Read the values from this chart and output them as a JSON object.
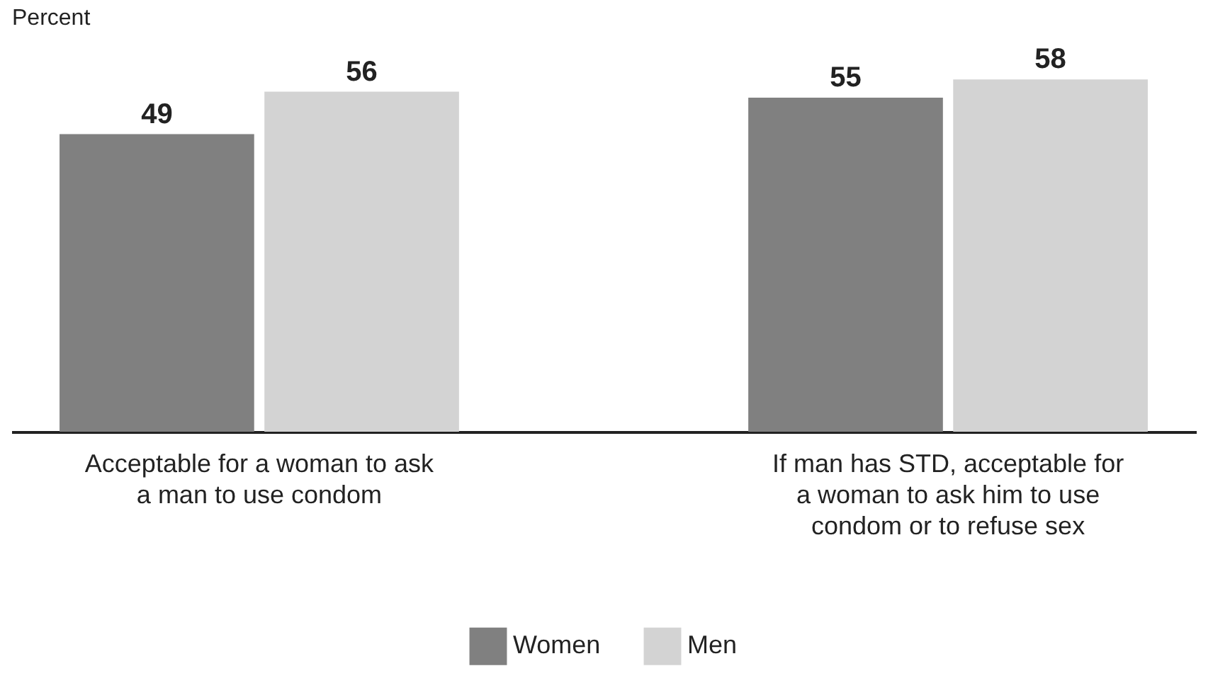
{
  "chart_data": {
    "type": "bar",
    "ylabel": "Percent",
    "categories": [
      "Acceptable for a woman to ask a man to use condom",
      "If man has STD, acceptable for a woman to ask him to use condom or to refuse sex"
    ],
    "series": [
      {
        "name": "Women",
        "color": "#808080",
        "values": [
          49,
          55
        ]
      },
      {
        "name": "Men",
        "color": "#d3d3d3",
        "values": [
          56,
          58
        ]
      }
    ],
    "data_labels": true,
    "legend": "bottom",
    "grid": false
  }
}
